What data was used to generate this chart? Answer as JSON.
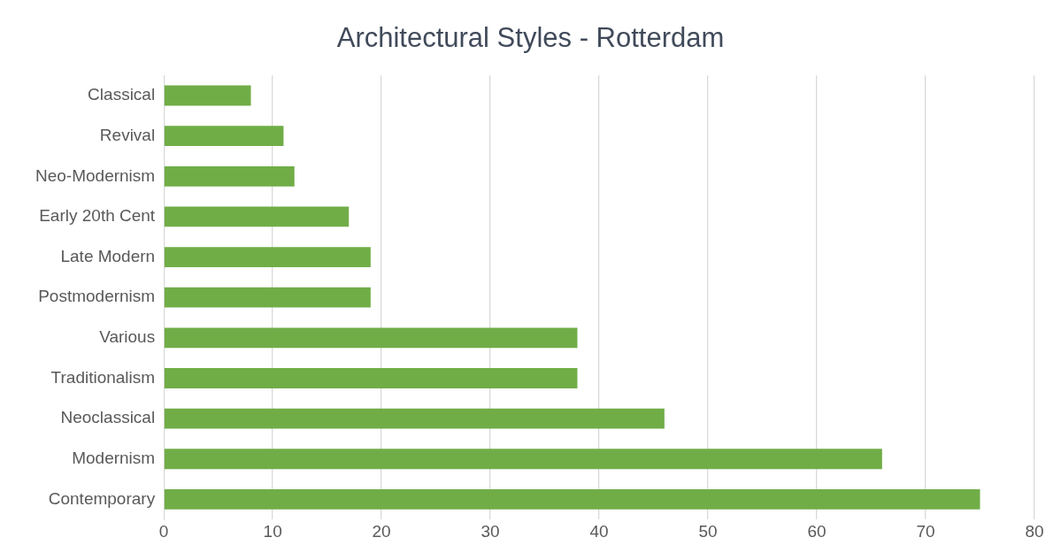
{
  "chart_data": {
    "type": "bar",
    "orientation": "horizontal",
    "title": "Architectural Styles - Rotterdam",
    "categories": [
      "Classical",
      "Revival",
      "Neo-Modernism",
      "Early 20th Cent",
      "Late Modern",
      "Postmodernism",
      "Various",
      "Traditionalism",
      "Neoclassical",
      "Modernism",
      "Contemporary"
    ],
    "values": [
      8,
      11,
      12,
      17,
      19,
      19,
      38,
      38,
      46,
      66,
      75
    ],
    "color": "#70ad47",
    "xlim": [
      0,
      80
    ],
    "xticks": [
      0,
      10,
      20,
      30,
      40,
      50,
      60,
      70,
      80
    ],
    "grid": "x",
    "legend": false
  }
}
